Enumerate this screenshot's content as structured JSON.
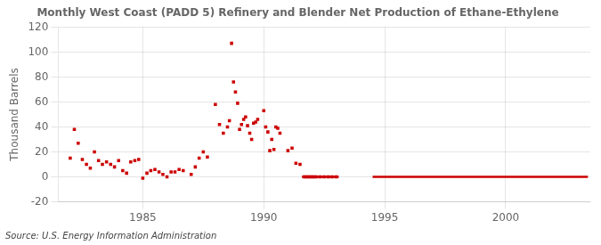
{
  "chart_data": {
    "type": "scatter",
    "title": "Monthly West Coast (PADD 5) Refinery and Blender Net Production of Ethane-Ethylene",
    "ylabel": "Thousand Barrels",
    "source": "Source: U.S. Energy Information Administration",
    "color": "#cc0000",
    "marker": "square",
    "x": [
      1982.0,
      1982.17,
      1982.33,
      1982.5,
      1982.67,
      1982.83,
      1983.0,
      1983.17,
      1983.33,
      1983.5,
      1983.67,
      1983.83,
      1984.0,
      1984.17,
      1984.33,
      1984.5,
      1984.67,
      1984.83,
      1985.0,
      1985.17,
      1985.33,
      1985.5,
      1985.67,
      1985.83,
      1986.0,
      1986.17,
      1986.33,
      1986.5,
      1986.67,
      1987.0,
      1987.17,
      1987.33,
      1987.5,
      1987.67,
      1988.0,
      1988.17,
      1988.33,
      1988.5,
      1988.58,
      1988.67,
      1988.75,
      1988.83,
      1988.92,
      1989.0,
      1989.08,
      1989.17,
      1989.25,
      1989.33,
      1989.42,
      1989.5,
      1989.58,
      1989.67,
      1989.75,
      1990.0,
      1990.08,
      1990.17,
      1990.25,
      1990.33,
      1990.42,
      1990.5,
      1990.58,
      1990.67,
      1991.0,
      1991.17,
      1991.33,
      1991.5,
      1991.67,
      1991.75,
      1991.83,
      1991.92,
      1992.0,
      1992.08,
      1992.17,
      1992.33,
      1992.5,
      1992.67,
      1992.83,
      1993.0
    ],
    "values": [
      15,
      38,
      27,
      14,
      10,
      7,
      20,
      13,
      10,
      12,
      10,
      8,
      13,
      5,
      3,
      12,
      13,
      14,
      -1,
      3,
      5,
      6,
      4,
      2,
      0,
      4,
      4,
      6,
      5,
      2,
      8,
      15,
      20,
      16,
      58,
      42,
      35,
      40,
      45,
      107,
      76,
      68,
      59,
      38,
      42,
      46,
      48,
      41,
      35,
      30,
      43,
      44,
      46,
      53,
      40,
      36,
      21,
      30,
      22,
      40,
      39,
      35,
      21,
      23,
      11,
      10,
      0,
      0,
      0,
      0,
      0,
      0,
      0,
      0,
      0,
      0,
      0,
      0
    ],
    "segments": [
      {
        "x_start": 1991.58,
        "x_end": 1993.1,
        "y": 0
      },
      {
        "x_start": 1994.5,
        "x_end": 2003.4,
        "y": 0
      }
    ],
    "xlim": [
      1981.5,
      2003.5
    ],
    "xticks": [
      1985,
      1990,
      1995,
      2000
    ],
    "ylim": [
      -20,
      120
    ],
    "yticks": [
      -20,
      0,
      20,
      40,
      60,
      80,
      100,
      120
    ],
    "grid": true
  }
}
